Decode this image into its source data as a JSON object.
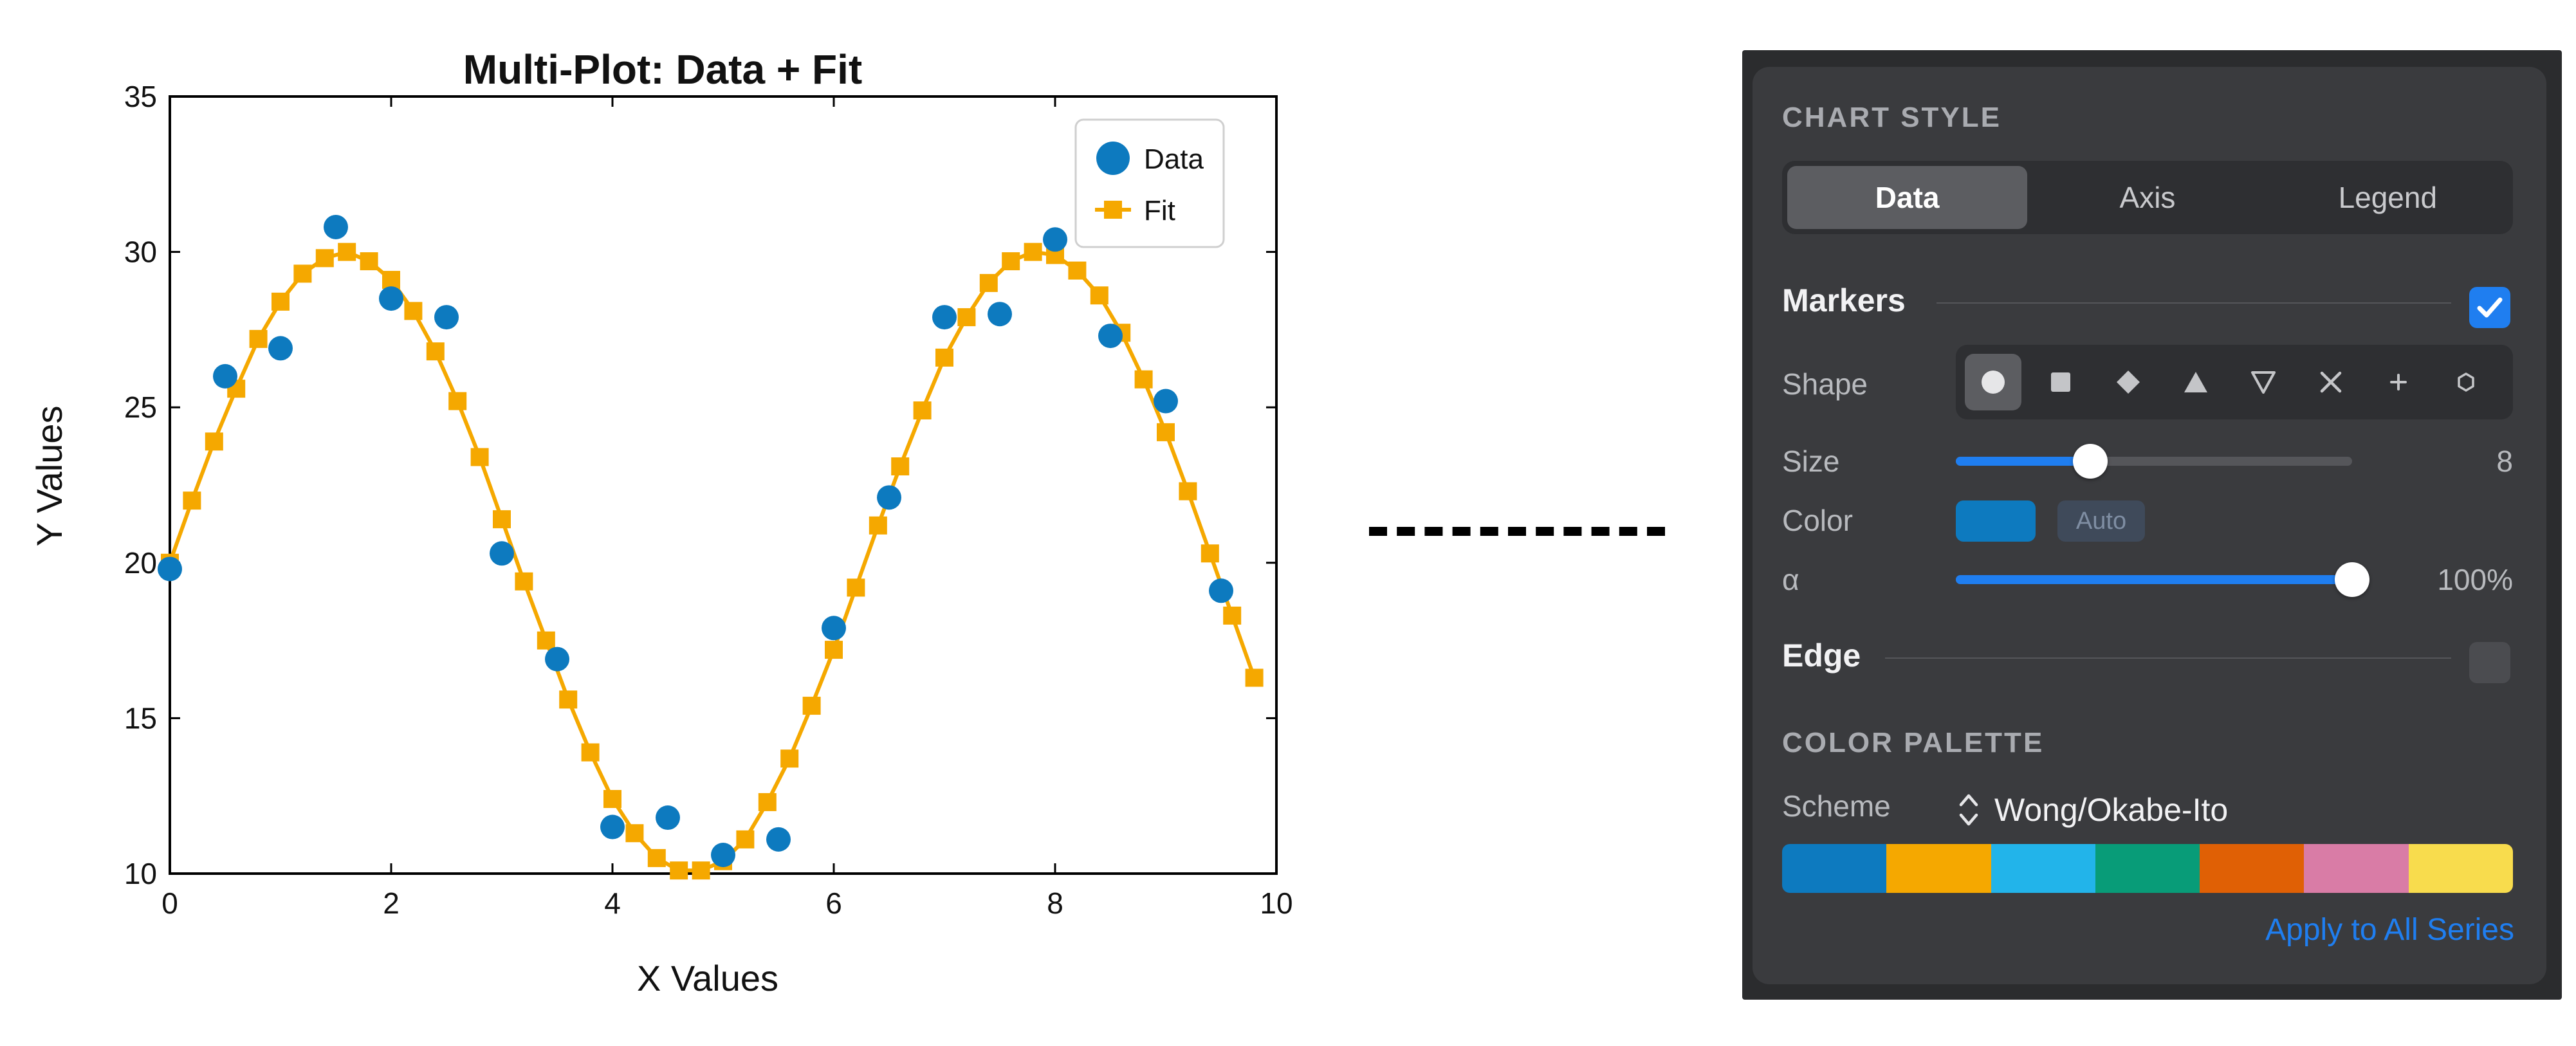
{
  "chart_data": {
    "type": "scatter",
    "title": "Multi-Plot: Data + Fit",
    "xlabel": "X Values",
    "ylabel": "Y Values",
    "xlim": [
      0,
      10
    ],
    "ylim": [
      10,
      35
    ],
    "xticks": [
      0,
      2,
      4,
      6,
      8,
      10
    ],
    "yticks": [
      10,
      15,
      20,
      25,
      30,
      35
    ],
    "legend_position": "top-right",
    "series": [
      {
        "name": "Data",
        "kind": "scatter",
        "color": "#0d7abf",
        "x": [
          0,
          0.5,
          1,
          1.5,
          2,
          2.5,
          3,
          3.5,
          4,
          4.5,
          5,
          5.5,
          6,
          6.5,
          7,
          7.5,
          8,
          8.5,
          9,
          9.5
        ],
        "y": [
          19.8,
          26.0,
          26.9,
          30.8,
          28.5,
          27.9,
          20.3,
          16.9,
          11.5,
          11.8,
          10.6,
          11.1,
          17.9,
          22.1,
          27.9,
          28.0,
          30.4,
          27.3,
          25.2,
          19.1
        ]
      },
      {
        "name": "Fit",
        "kind": "line+square",
        "color": "#f5a800",
        "x": [
          0,
          0.2,
          0.4,
          0.6,
          0.8,
          1.0,
          1.2,
          1.4,
          1.6,
          1.8,
          2.0,
          2.2,
          2.4,
          2.6,
          2.8,
          3.0,
          3.2,
          3.4,
          3.6,
          3.8,
          4.0,
          4.2,
          4.4,
          4.6,
          4.8,
          5.0,
          5.2,
          5.4,
          5.6,
          5.8,
          6.0,
          6.2,
          6.4,
          6.6,
          6.8,
          7.0,
          7.2,
          7.4,
          7.6,
          7.8,
          8.0,
          8.2,
          8.4,
          8.6,
          8.8,
          9.0,
          9.2,
          9.4,
          9.6,
          9.8
        ],
        "y": [
          20.0,
          22.0,
          23.9,
          25.6,
          27.2,
          28.4,
          29.3,
          29.8,
          30.0,
          29.7,
          29.1,
          28.1,
          26.8,
          25.2,
          23.4,
          21.4,
          19.4,
          17.5,
          15.6,
          13.9,
          12.4,
          11.3,
          10.5,
          10.1,
          10.1,
          10.4,
          11.1,
          12.3,
          13.7,
          15.4,
          17.2,
          19.2,
          21.2,
          23.1,
          24.9,
          26.6,
          27.9,
          29.0,
          29.7,
          30.0,
          29.9,
          29.4,
          28.6,
          27.4,
          25.9,
          24.2,
          22.3,
          20.3,
          18.3,
          16.3
        ]
      }
    ]
  },
  "panel": {
    "chart_style_title": "CHART STYLE",
    "tabs": [
      {
        "label": "Data",
        "active": true
      },
      {
        "label": "Axis",
        "active": false
      },
      {
        "label": "Legend",
        "active": false
      }
    ],
    "markers": {
      "label": "Markers",
      "enabled": true,
      "shape_label": "Shape",
      "shapes": [
        "circle",
        "square",
        "diamond",
        "triangle-up",
        "triangle-down",
        "x",
        "plus",
        "hexagon"
      ],
      "selected_shape": "circle",
      "size_label": "Size",
      "size_value": "8",
      "size_fraction": 0.34,
      "color_label": "Color",
      "color_value": "#0d7abf",
      "auto_label": "Auto",
      "alpha_label": "α",
      "alpha_value": "100%",
      "alpha_fraction": 1.0
    },
    "edge": {
      "label": "Edge",
      "enabled": false
    },
    "palette": {
      "title": "COLOR PALETTE",
      "scheme_label": "Scheme",
      "scheme_value": "Wong/Okabe-Ito",
      "colors": [
        "#0d7abf",
        "#f5a800",
        "#22b4ea",
        "#089c78",
        "#e06005",
        "#d97ca6",
        "#f8dc4d"
      ],
      "apply_label": "Apply to All Series"
    }
  }
}
